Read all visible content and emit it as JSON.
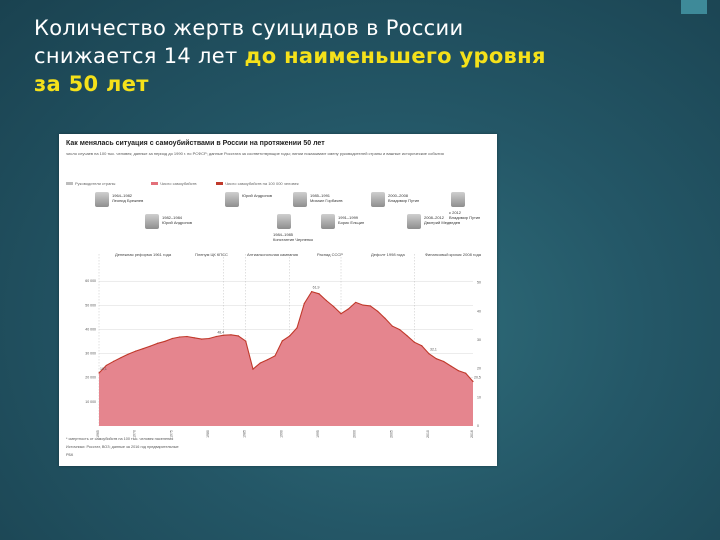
{
  "slide": {
    "title_line1": "Количество жертв суицидов в России",
    "title_line2_plain": "снижается 14 лет ",
    "title_line2_highlight": "до наименьшего  уровня",
    "title_line3_highlight": "за 50 лет",
    "highlight_color": "#f5e11a"
  },
  "figure": {
    "title": "Как менялась ситуация с самоубийствами в России на протяжении 50 лет",
    "description": "число случаев на 100 тыс. человек; данные за период до 1990 г. по РСФСР; данные Росстата за соответствующие годы; линии показывают смену руководителей страны и важные исторические события",
    "legend": [
      {
        "label": "Руководители страны",
        "color": "#bdbdbd"
      },
      {
        "label": "Число самоубийств",
        "color": "#e3707a"
      },
      {
        "label": "Число самоубийств на 100 000 человек",
        "color": "#c0392b"
      }
    ],
    "leaders": [
      {
        "period": "1964–1982",
        "name": "Леонид Брежнев"
      },
      {
        "period": "1982–1984",
        "name": "Юрий Андропов"
      },
      {
        "period": "1984–1985",
        "name": "Константин Черненко"
      },
      {
        "period": "1985–1991",
        "name": "Михаил Горбачев"
      },
      {
        "period": "1991–1999",
        "name": "Борис Ельцин"
      },
      {
        "period": "2000–2008",
        "name": "Владимир Путин"
      },
      {
        "period": "2008–2012",
        "name": "Дмитрий Медведев"
      },
      {
        "period": "с 2012",
        "name": "Владимир Путин"
      }
    ],
    "events": [
      "Денежная реформа 1961 года",
      "Пленум ЦК КПСС",
      "Антиалкогольная кампания",
      "Распад СССР",
      "Дефолт 1998 года",
      "Финансовый кризис 2008 года"
    ],
    "footnotes": [
      "Источники: Росстат, ВОЗ; данные за 2016 год предварительные",
      "* смертность от самоубийств на 100 тыс. человек населения",
      "РБК"
    ]
  },
  "chart_data": {
    "type": "area",
    "x": [
      1965,
      1966,
      1967,
      1968,
      1969,
      1970,
      1971,
      1972,
      1973,
      1974,
      1975,
      1976,
      1977,
      1978,
      1979,
      1980,
      1981,
      1982,
      1983,
      1984,
      1985,
      1986,
      1987,
      1988,
      1989,
      1990,
      1991,
      1992,
      1993,
      1994,
      1995,
      1996,
      1997,
      1998,
      1999,
      2000,
      2001,
      2002,
      2003,
      2004,
      2005,
      2006,
      2007,
      2008,
      2009,
      2010,
      2011,
      2012,
      2013,
      2014,
      2015,
      2016
    ],
    "series": [
      {
        "name": "Число самоубийств",
        "values": [
          24.4,
          27.9,
          29.8,
          31.5,
          33.1,
          34.5,
          35.6,
          36.8,
          38.1,
          39.0,
          40.3,
          41.0,
          41.2,
          40.6,
          40.0,
          40.3,
          41.2,
          41.8,
          42.0,
          41.5,
          39.1,
          26.2,
          29.0,
          30.6,
          32.3,
          39.2,
          41.5,
          45.2,
          56.4,
          61.9,
          60.9,
          57.8,
          55.0,
          51.7,
          53.9,
          56.9,
          55.7,
          55.3,
          52.8,
          49.6,
          46.0,
          44.4,
          41.6,
          38.6,
          37.0,
          33.3,
          31.0,
          29.7,
          27.6,
          25.5,
          24.3,
          20.5
        ]
      }
    ],
    "annotations": [
      "61,9",
      "48,4",
      "20,5",
      "32,1",
      "19,1",
      "1989",
      "1996",
      "1975",
      "1990"
    ],
    "ylim": [
      0,
      70
    ],
    "y_ticks_left": [
      "10 000",
      "20 000",
      "30 000",
      "40 000",
      "50 000",
      "60 000"
    ],
    "y_ticks_right": [
      "0",
      "10",
      "20",
      "30",
      "40",
      "50"
    ],
    "x_ticks": [
      "1965",
      "1970",
      "1975",
      "1980",
      "1985",
      "1990",
      "1995",
      "2000",
      "2005",
      "2010",
      "2016"
    ],
    "colors": {
      "fill": "#e5858e",
      "line": "#c0392b",
      "grid": "#d9d9d9"
    }
  }
}
